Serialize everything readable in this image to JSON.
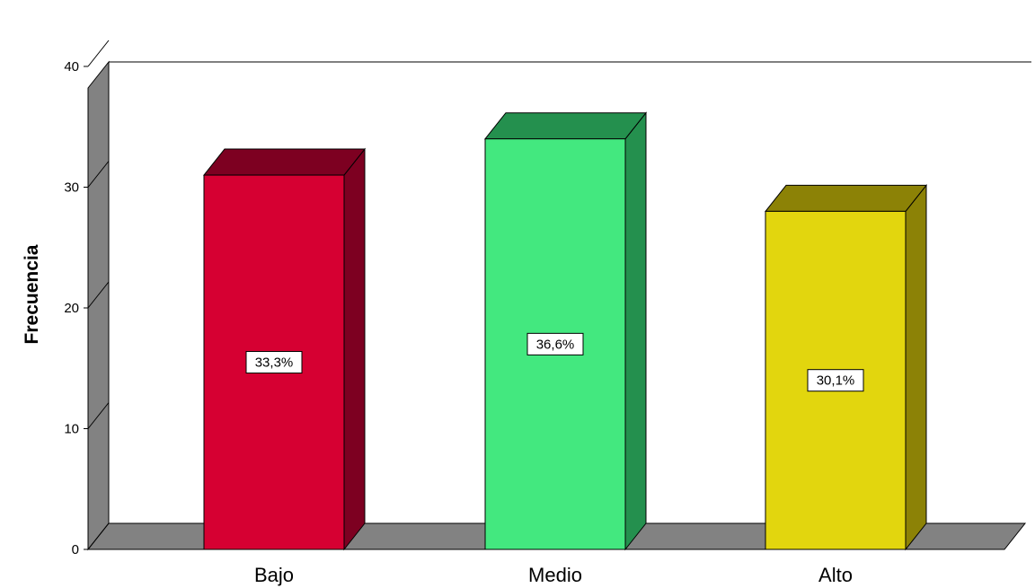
{
  "chart_data": {
    "type": "bar",
    "title": "",
    "xlabel": "",
    "ylabel": "Frecuencia",
    "ylim": [
      0,
      40
    ],
    "yticks": [
      0,
      10,
      20,
      30,
      40
    ],
    "grid": false,
    "legend": "none",
    "categories": [
      "Bajo",
      "Medio",
      "Alto"
    ],
    "values": [
      31,
      34,
      28
    ],
    "data_labels": [
      "33,3%",
      "36,6%",
      "30,1%"
    ],
    "colors": {
      "front": [
        "#d60032",
        "#43e87f",
        "#e2d60e"
      ],
      "top": [
        "#7d0021",
        "#24904e",
        "#8c8206"
      ],
      "side": [
        "#7d0021",
        "#24904e",
        "#8c8206"
      ],
      "wall": "#828282",
      "floor": "#828282"
    }
  }
}
